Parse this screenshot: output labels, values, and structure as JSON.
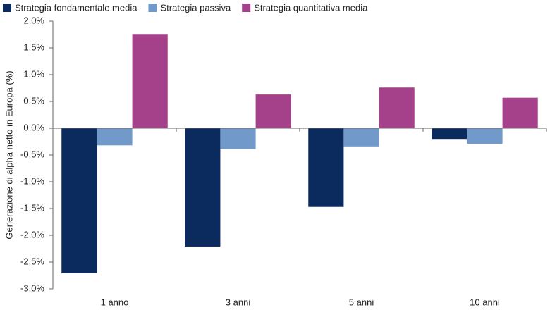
{
  "chart_data": {
    "type": "bar",
    "y_label": "Generazione di alpha netto in Europa (%)",
    "categories": [
      "1 anno",
      "3 anni",
      "5 anni",
      "10 anni"
    ],
    "series": [
      {
        "name": "Strategia fondamentale media",
        "color": "#0b2a5e",
        "values": [
          -2.71,
          -2.21,
          -1.47,
          -0.2
        ]
      },
      {
        "name": "Strategia passiva",
        "color": "#7199c9",
        "values": [
          -0.32,
          -0.39,
          -0.34,
          -0.29
        ]
      },
      {
        "name": "Strategia quantitativa media",
        "color": "#a5408a",
        "values": [
          1.76,
          0.63,
          0.76,
          0.57
        ]
      }
    ],
    "ylim": [
      -3,
      2
    ],
    "yticks": [
      {
        "value": -3,
        "label": "-3,0%"
      },
      {
        "value": -2.5,
        "label": "-2,5%"
      },
      {
        "value": -2,
        "label": "-2,0%"
      },
      {
        "value": -1.5,
        "label": "-1,5%"
      },
      {
        "value": -1,
        "label": "-1,0%"
      },
      {
        "value": -0.5,
        "label": "-0,5%"
      },
      {
        "value": 0,
        "label": "0,0%"
      },
      {
        "value": 0.5,
        "label": "0,5%"
      },
      {
        "value": 1,
        "label": "1,0%"
      },
      {
        "value": 1.5,
        "label": "1,5%"
      },
      {
        "value": 2,
        "label": "2,0%"
      }
    ],
    "legend": "top-left"
  }
}
